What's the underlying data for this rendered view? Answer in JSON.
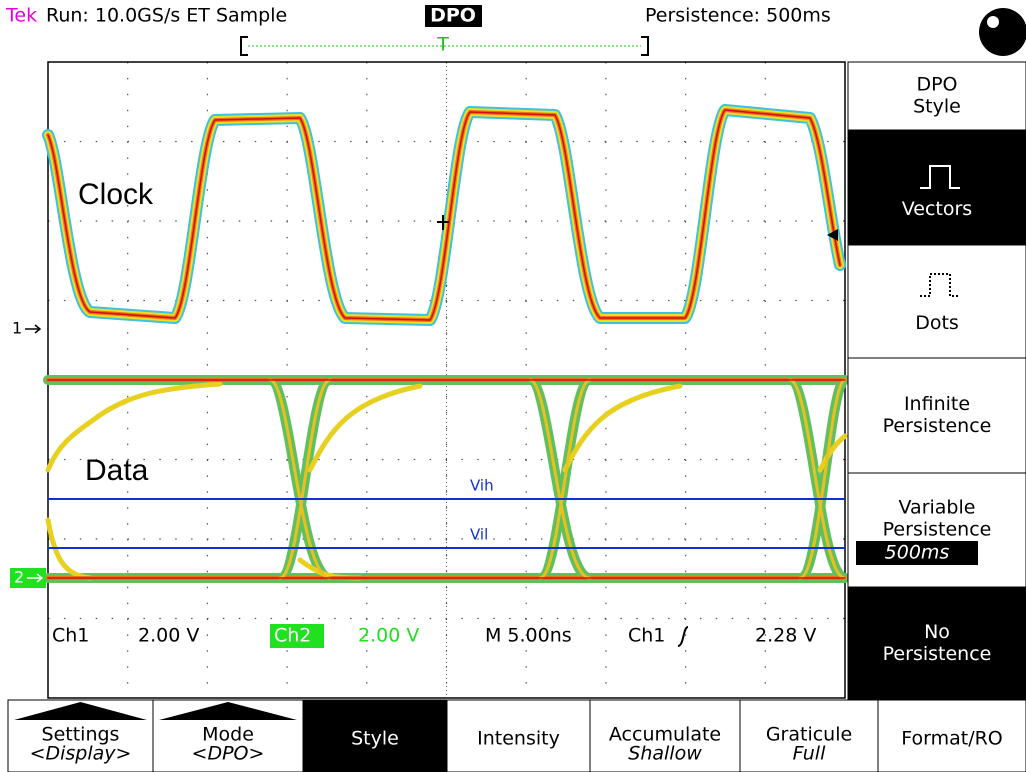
{
  "status_bar": {
    "brand": "Tek",
    "acquisition": "Run: 10.0GS/s ET Sample",
    "mode": "DPO",
    "persistence": "Persistence: 500ms",
    "trigger_marker": "T"
  },
  "display": {
    "labels": [
      "Clock",
      "Data"
    ],
    "channel_markers": [
      "1",
      "2"
    ],
    "cursors": [
      "Vih",
      "Vil"
    ]
  },
  "readout": {
    "ch1": "Ch1",
    "ch1_scale": "2.00 V",
    "ch2": "Ch2",
    "ch2_scale": "2.00 V",
    "timebase": "M 5.00ns",
    "trigger_source": "Ch1",
    "trigger_level": "2.28 V"
  },
  "side_menu": [
    {
      "lines": [
        "DPO",
        "Style"
      ]
    },
    {
      "lines": [
        "Vectors"
      ]
    },
    {
      "lines": [
        "Dots"
      ]
    },
    {
      "lines": [
        "Infinite",
        "Persistence"
      ]
    },
    {
      "lines": [
        "Variable",
        "Persistence"
      ],
      "value": "500ms"
    },
    {
      "lines": [
        "No",
        "Persistence"
      ]
    }
  ],
  "bottom_menu": [
    {
      "lines": [
        "Settings",
        "<Display>"
      ]
    },
    {
      "lines": [
        "Mode",
        "<DPO>"
      ]
    },
    {
      "lines": [
        "Style"
      ]
    },
    {
      "lines": [
        "Intensity"
      ]
    },
    {
      "lines": [
        "Accumulate",
        "Shallow"
      ]
    },
    {
      "lines": [
        "Graticule",
        "Full"
      ]
    },
    {
      "lines": [
        "Format/RO"
      ]
    }
  ]
}
